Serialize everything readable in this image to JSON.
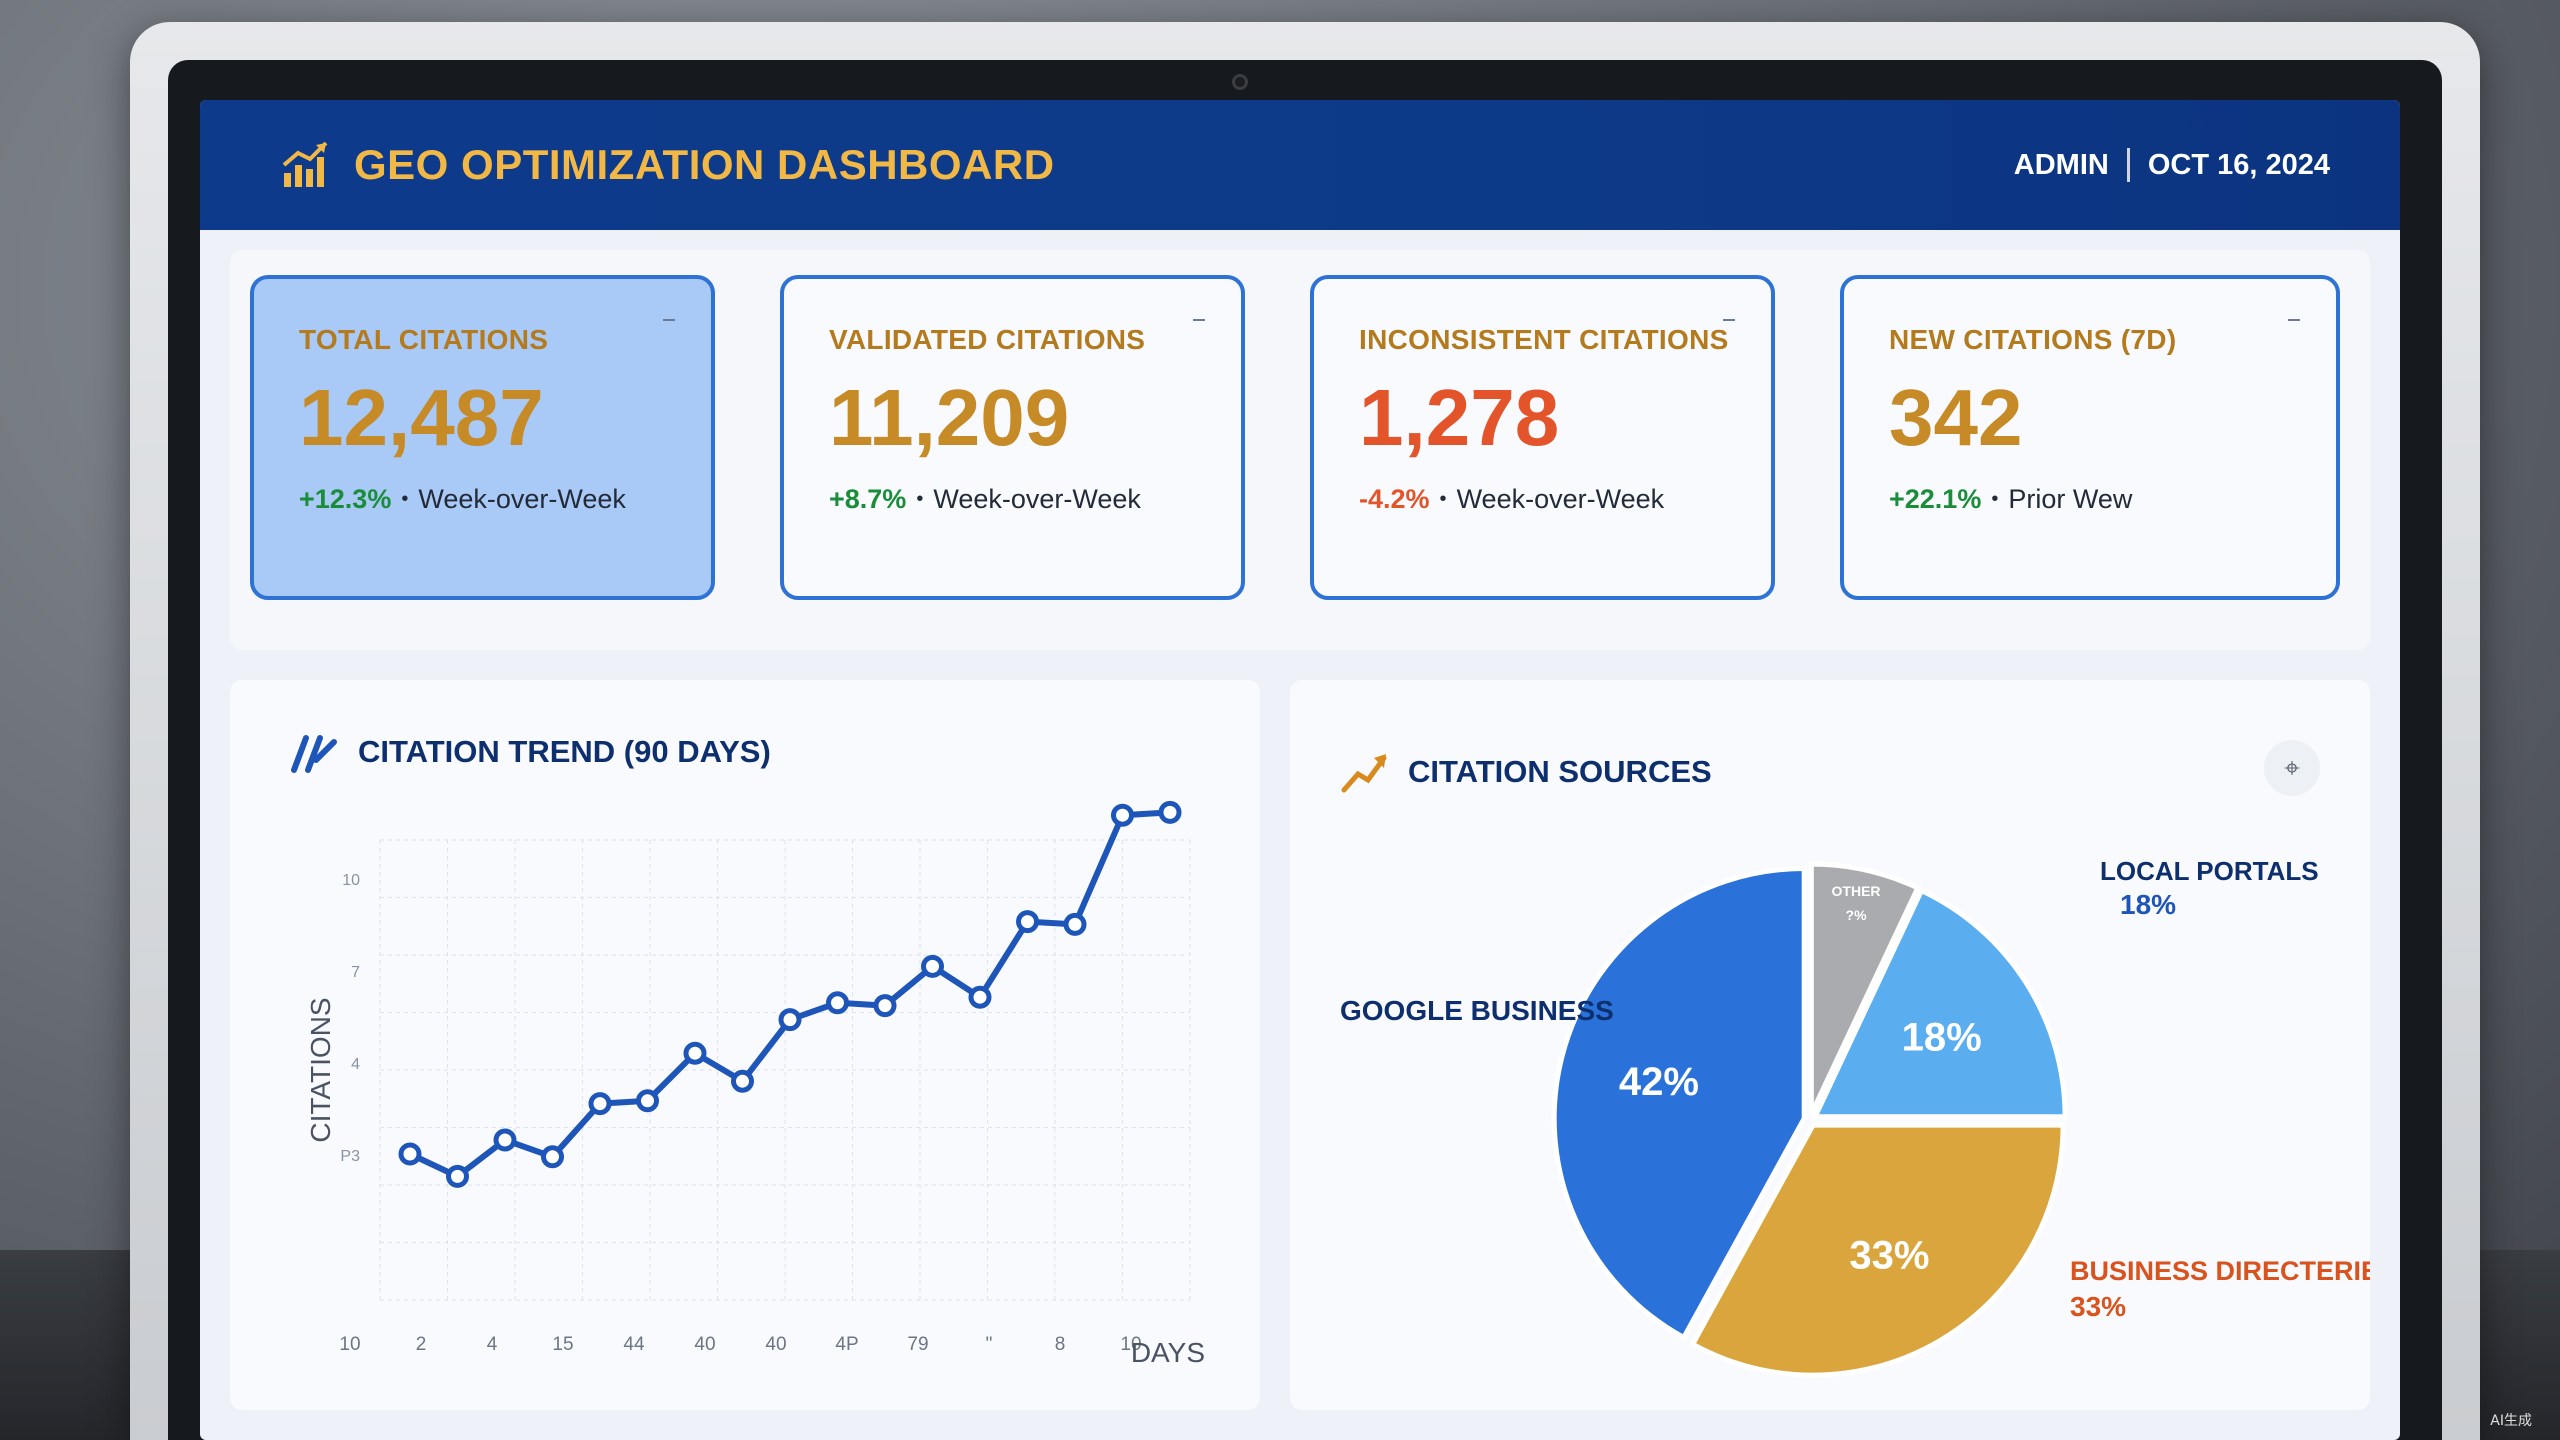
{
  "header": {
    "title": "GEO OPTIMIZATION DASHBOARD",
    "user": "ADMIN",
    "date": "OCT 16, 2024",
    "icon": "bar-chart-trend-icon"
  },
  "kpis": [
    {
      "label": "TOTAL CITATIONS",
      "value": "12,487",
      "delta": "+12.3%",
      "direction": "up",
      "period": "Week-over-Week"
    },
    {
      "label": "VALIDATED CITATIONS",
      "value": "11,209",
      "delta": "+8.7%",
      "direction": "up",
      "period": "Week-over-Week"
    },
    {
      "label": "INCONSISTENT CITATIONS",
      "value": "1,278",
      "delta": "-4.2%",
      "direction": "down",
      "period": "Week-over-Week"
    },
    {
      "label": "NEW CITATIONS (7D)",
      "value": "342",
      "delta": "+22.1%",
      "direction": "up",
      "period": "Prior Wew"
    }
  ],
  "trend": {
    "title": "CITATION TREND (90 DAYS)"
  },
  "sources": {
    "title": "CITATION SOURCES"
  },
  "colors": {
    "header": "#0e3a8c",
    "accent_gold": "#c68a26",
    "kpi_border": "#2f72d6",
    "up": "#1a8c3a",
    "down": "#e4542a",
    "line": "#1e55b8"
  },
  "watermark": "AI生成",
  "chart_data": [
    {
      "type": "line",
      "title": "CITATION TREND (90 DAYS)",
      "xlabel": "DAYS",
      "ylabel": "CITATIONS",
      "x_tick_labels": [
        "10",
        "2",
        "4",
        "15",
        "44",
        "40",
        "40",
        "4P",
        "79",
        "\"",
        "8",
        "10"
      ],
      "y_tick_labels": [
        "10",
        "7",
        "4",
        "P3"
      ],
      "values": [
        2.0,
        1.2,
        2.5,
        1.9,
        3.8,
        3.9,
        5.6,
        4.6,
        6.8,
        7.4,
        7.3,
        8.7,
        7.6,
        10.3,
        10.2,
        14.1,
        14.2
      ],
      "grid": true
    },
    {
      "type": "pie",
      "title": "CITATION SOURCES",
      "slices": [
        {
          "label": "GOOGLE BUSINESS",
          "value": 42,
          "display": "42%",
          "color": "#2a72d9"
        },
        {
          "label": "OTHER",
          "value": 7,
          "display": "?%",
          "color": "#a9abae"
        },
        {
          "label": "LOCAL PORTALS",
          "value": 18,
          "display": "18%",
          "color": "#5aaef0"
        },
        {
          "label": "BUSINESS DIRECTERIES",
          "value": 33,
          "display": "33%",
          "color": "#d9a53c"
        }
      ],
      "outer_labels": [
        {
          "name": "GOOGLE BUSINESS",
          "pct": ""
        },
        {
          "name": "LOCAL PORTALS",
          "pct": "18%"
        },
        {
          "name": "BUSINESS DIRECTERIES",
          "pct": "33%"
        }
      ]
    }
  ]
}
